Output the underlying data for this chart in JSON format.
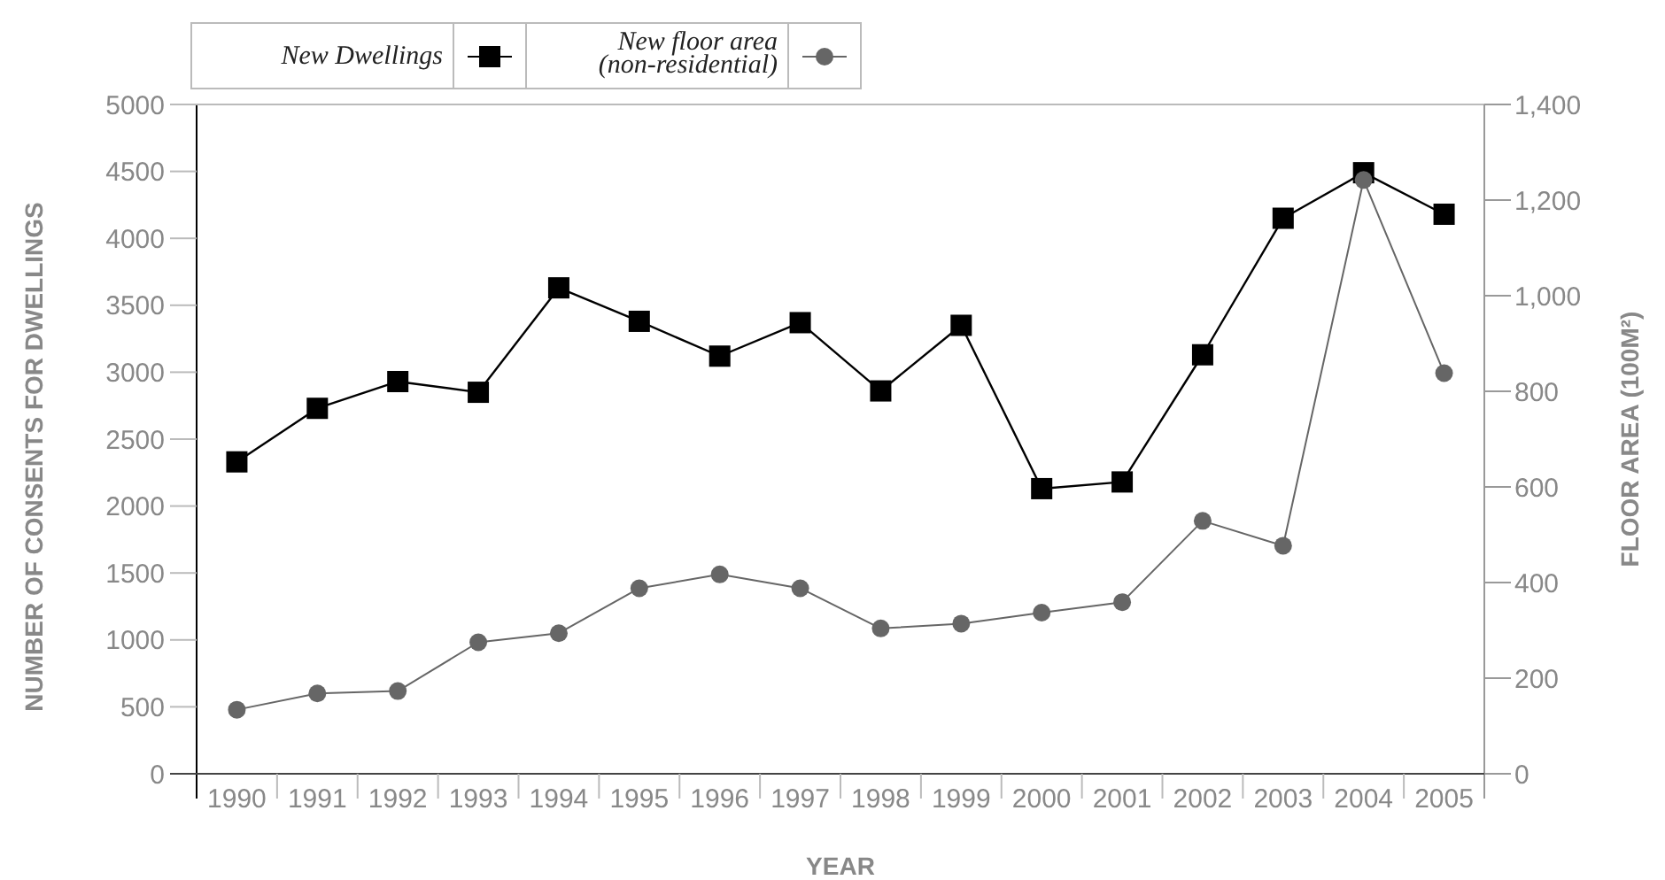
{
  "chart_data": {
    "type": "line",
    "xlabel": "YEAR",
    "ylabel": "NUMBER OF CONSENTS FOR DWELLINGS",
    "y2label": "FLOOR AREA (100M²)",
    "categories": [
      "1990",
      "1991",
      "1992",
      "1993",
      "1994",
      "1995",
      "1996",
      "1997",
      "1998",
      "1999",
      "2000",
      "2001",
      "2002",
      "2003",
      "2004",
      "2005"
    ],
    "series": [
      {
        "name": "New Dwellings",
        "color": "#000000",
        "marker": "square",
        "values": [
          2330,
          2730,
          2930,
          2850,
          3630,
          3380,
          3120,
          3370,
          2860,
          3350,
          2130,
          2180,
          3130,
          4150,
          4490,
          4180
        ]
      },
      {
        "name": "New floor area (non-residential)",
        "color": "#666666",
        "marker": "circle",
        "axis": "y2",
        "values": [
          134,
          168,
          173,
          275,
          294,
          388,
          417,
          388,
          304,
          314,
          337,
          359,
          529,
          477,
          1242,
          838
        ]
      }
    ],
    "ylim": [
      0,
      5000
    ],
    "yticks": [
      0,
      500,
      1000,
      1500,
      2000,
      2500,
      3000,
      3500,
      4000,
      4500,
      5000
    ],
    "y2lim": [
      0,
      1400
    ],
    "y2ticks": [
      0,
      {
        "value": 200,
        "label": "200"
      },
      {
        "value": 400,
        "label": "400"
      },
      {
        "value": 600,
        "label": "600"
      },
      {
        "value": 800,
        "label": "800"
      },
      {
        "value": 1000,
        "label": "1,000"
      },
      {
        "value": 1200,
        "label": "1,200"
      },
      {
        "value": 1400,
        "label": "1,400"
      }
    ],
    "legend": "top left",
    "grid": false,
    "line_style": "solid"
  }
}
